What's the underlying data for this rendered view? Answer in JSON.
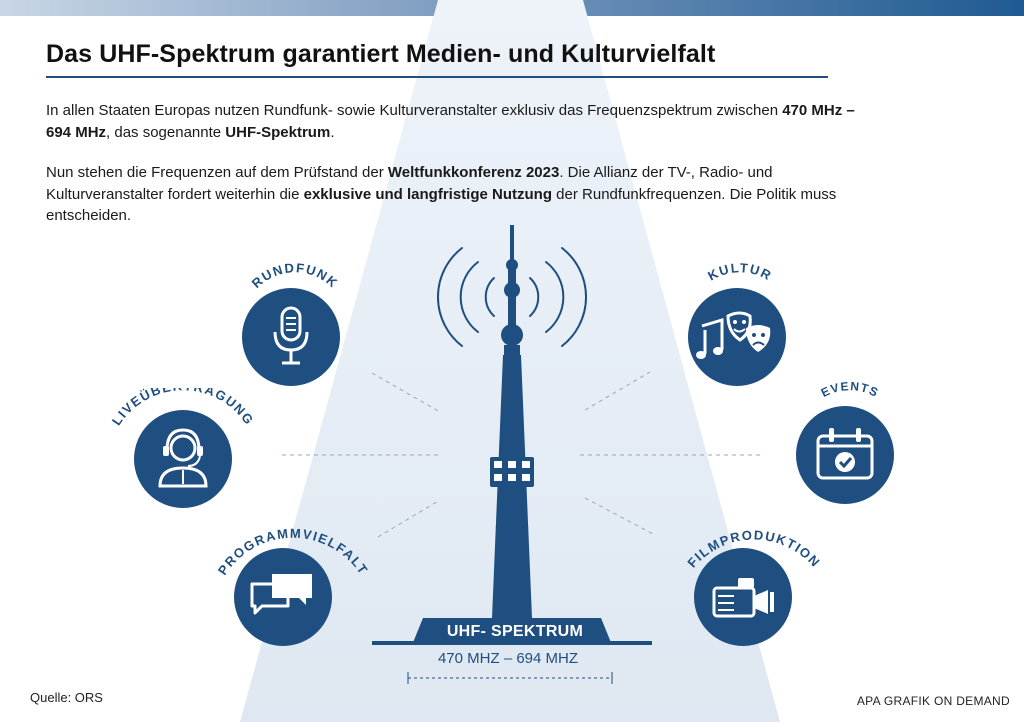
{
  "title": "Das UHF-Spektrum garantiert Medien- und Kulturvielfalt",
  "intro": {
    "p1_a": "In allen Staaten Europas nutzen Rundfunk- sowie Kulturveranstalter exklusiv das Frequenzspektrum zwischen ",
    "p1_b": "470 MHz – 694 MHz",
    "p1_c": ", das sogenannte ",
    "p1_d": "UHF-Spektrum",
    "p1_e": ".",
    "p2_a": "Nun stehen die Frequenzen auf dem Prüfstand der ",
    "p2_b": "Weltfunkkonferenz 2023",
    "p2_c": ". Die Allianz der TV-, Radio- und Kulturveranstalter fordert weiterhin die ",
    "p2_d": "exklusive und langfristige Nutzung",
    "p2_e": " der Rundfunkfrequenzen. Die Politik muss entscheiden."
  },
  "categories": {
    "rundfunk": "RUNDFUNK",
    "liveuebertragung": "LIVEÜBERTRAGUNG",
    "programmvielfalt": "PROGRAMMVIELFALT",
    "kultur": "KULTUR",
    "events": "EVENTS",
    "filmproduktion": "FILMPRODUKTION"
  },
  "icons": {
    "rundfunk": "microphone-icon",
    "liveuebertragung": "headset-operator-icon",
    "programmvielfalt": "chat-bubbles-icon",
    "kultur": "music-theater-masks-icon",
    "events": "calendar-check-icon",
    "filmproduktion": "video-camera-icon"
  },
  "badge": "UHF- SPEKTRUM",
  "frequency_range": "470 MHZ – 694 MHZ",
  "source": "Quelle: ORS",
  "credit": "APA GRAFIK ON DEMAND",
  "colors": {
    "primary": "#1f4e80",
    "beam": "#e6eef6",
    "top_bar_end": "#1f5a92"
  }
}
